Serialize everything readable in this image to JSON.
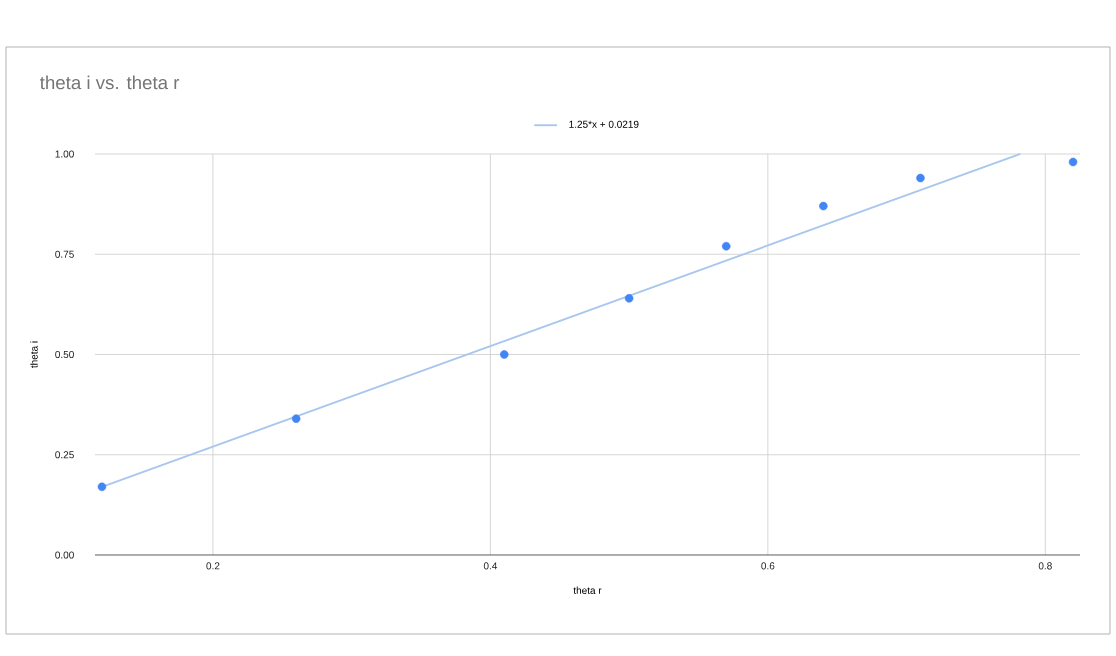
{
  "chart_data": {
    "type": "scatter",
    "title": "theta i vs. theta r",
    "xlabel": "theta r",
    "ylabel": "theta i",
    "xlim": [
      0.115,
      0.825
    ],
    "ylim": [
      0,
      1
    ],
    "xticks": [
      0.2,
      0.4,
      0.6,
      0.8
    ],
    "yticks": [
      {
        "value": 0,
        "label": "0.00"
      },
      {
        "value": 0.25,
        "label": "0.25"
      },
      {
        "value": 0.5,
        "label": "0.50"
      },
      {
        "value": 0.75,
        "label": "0.75"
      },
      {
        "value": 1,
        "label": "1.00"
      }
    ],
    "grid": true,
    "legend": "top",
    "series": [
      {
        "marker": "circle",
        "color": "#4285f4",
        "x": [
          0.12,
          0.26,
          0.41,
          0.5,
          0.57,
          0.64,
          0.71,
          0.82
        ],
        "values": [
          0.17,
          0.34,
          0.5,
          0.64,
          0.77,
          0.87,
          0.94,
          0.98
        ]
      },
      {
        "type": "line",
        "marker": "none",
        "name": "1.25*x + 0.0219",
        "color": "#a8c7ee",
        "x": [
          0.12,
          0.782
        ],
        "values": [
          0.17,
          1
        ]
      }
    ]
  }
}
